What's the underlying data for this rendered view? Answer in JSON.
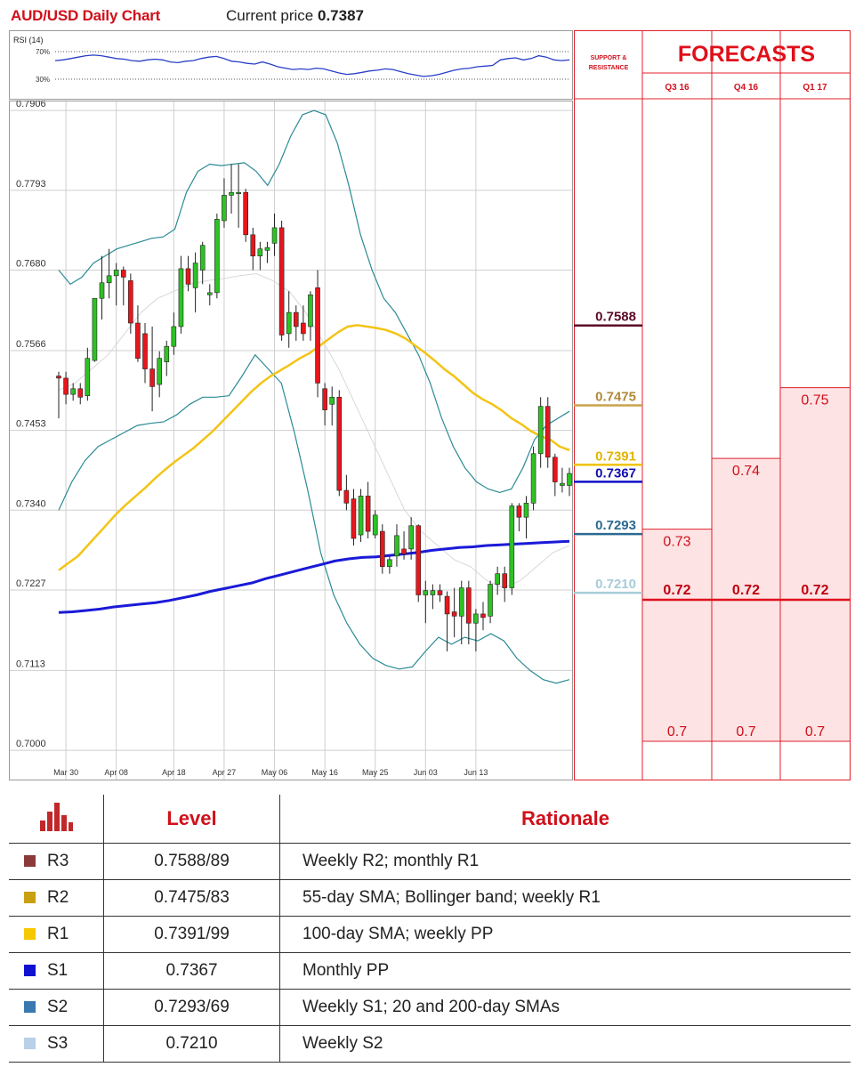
{
  "header": {
    "title": "AUD/USD Daily Chart",
    "price_label": "Current price",
    "price_value": "0.7387"
  },
  "rsi": {
    "label": "RSI (14)",
    "levels": [
      "70%",
      "30%"
    ],
    "values": [
      57,
      58,
      60,
      62,
      64,
      65,
      64,
      62,
      60,
      59,
      57,
      56,
      58,
      59,
      58,
      55,
      54,
      56,
      57,
      60,
      62,
      63,
      60,
      56,
      55,
      53,
      52,
      55,
      52,
      48,
      46,
      44,
      45,
      44,
      46,
      45,
      42,
      39,
      37,
      38,
      40,
      42,
      43,
      45,
      44,
      41,
      38,
      36,
      34,
      35,
      37,
      40,
      43,
      45,
      46,
      48,
      49,
      50,
      58,
      60,
      61,
      58,
      60,
      64,
      62,
      58,
      57,
      58
    ]
  },
  "chart_data": {
    "type": "candlestick",
    "title": "AUD/USD Daily Chart",
    "y_ticks": [
      "0.7906",
      "0.7793",
      "0.7680",
      "0.7566",
      "0.7453",
      "0.7340",
      "0.7227",
      "0.7113",
      "0.7000"
    ],
    "ylim": [
      0.699,
      0.791
    ],
    "x_ticks": [
      {
        "label": "Mar 30",
        "i": 1
      },
      {
        "label": "Apr 08",
        "i": 8
      },
      {
        "label": "Apr 18",
        "i": 16
      },
      {
        "label": "Apr 27",
        "i": 23
      },
      {
        "label": "May 06",
        "i": 30
      },
      {
        "label": "May 16",
        "i": 37
      },
      {
        "label": "May 25",
        "i": 44
      },
      {
        "label": "Jun 03",
        "i": 51
      },
      {
        "label": "Jun 13",
        "i": 58
      }
    ],
    "candles": [
      [
        0.753,
        0.7536,
        0.747,
        0.7527
      ],
      [
        0.7527,
        0.7536,
        0.749,
        0.7504
      ],
      [
        0.7504,
        0.752,
        0.7495,
        0.7512
      ],
      [
        0.7512,
        0.752,
        0.749,
        0.75
      ],
      [
        0.7502,
        0.757,
        0.7495,
        0.7555
      ],
      [
        0.7552,
        0.764,
        0.755,
        0.764
      ],
      [
        0.764,
        0.77,
        0.761,
        0.7662
      ],
      [
        0.7662,
        0.771,
        0.764,
        0.7672
      ],
      [
        0.7672,
        0.769,
        0.763,
        0.768
      ],
      [
        0.768,
        0.7685,
        0.763,
        0.767
      ],
      [
        0.7665,
        0.7675,
        0.759,
        0.7605
      ],
      [
        0.7605,
        0.763,
        0.755,
        0.7555
      ],
      [
        0.759,
        0.7605,
        0.752,
        0.754
      ],
      [
        0.754,
        0.76,
        0.748,
        0.7515
      ],
      [
        0.7518,
        0.7565,
        0.75,
        0.7555
      ],
      [
        0.755,
        0.758,
        0.753,
        0.7572
      ],
      [
        0.7572,
        0.762,
        0.756,
        0.76
      ],
      [
        0.76,
        0.77,
        0.759,
        0.7682
      ],
      [
        0.7682,
        0.77,
        0.765,
        0.766
      ],
      [
        0.7655,
        0.7705,
        0.762,
        0.769
      ],
      [
        0.768,
        0.772,
        0.766,
        0.7715
      ],
      [
        0.7645,
        0.766,
        0.763,
        0.7648
      ],
      [
        0.7648,
        0.776,
        0.764,
        0.7752
      ],
      [
        0.775,
        0.781,
        0.774,
        0.7786
      ],
      [
        0.7786,
        0.783,
        0.776,
        0.779
      ],
      [
        0.779,
        0.783,
        0.774,
        0.779
      ],
      [
        0.779,
        0.7795,
        0.772,
        0.773
      ],
      [
        0.773,
        0.774,
        0.768,
        0.77
      ],
      [
        0.77,
        0.772,
        0.768,
        0.771
      ],
      [
        0.7708,
        0.772,
        0.769,
        0.7712
      ],
      [
        0.7718,
        0.776,
        0.77,
        0.774
      ],
      [
        0.774,
        0.775,
        0.758,
        0.7588
      ],
      [
        0.759,
        0.765,
        0.757,
        0.762
      ],
      [
        0.762,
        0.763,
        0.758,
        0.76
      ],
      [
        0.7605,
        0.763,
        0.758,
        0.759
      ],
      [
        0.76,
        0.765,
        0.758,
        0.7645
      ],
      [
        0.7655,
        0.768,
        0.75,
        0.752
      ],
      [
        0.7512,
        0.752,
        0.746,
        0.7482
      ],
      [
        0.749,
        0.7515,
        0.746,
        0.75
      ],
      [
        0.75,
        0.751,
        0.736,
        0.7368
      ],
      [
        0.7368,
        0.739,
        0.734,
        0.735
      ],
      [
        0.7356,
        0.737,
        0.729,
        0.73
      ],
      [
        0.7305,
        0.737,
        0.7295,
        0.736
      ],
      [
        0.736,
        0.738,
        0.73,
        0.731
      ],
      [
        0.7305,
        0.734,
        0.73,
        0.7333
      ],
      [
        0.731,
        0.732,
        0.725,
        0.726
      ],
      [
        0.726,
        0.7275,
        0.725,
        0.727
      ],
      [
        0.7275,
        0.732,
        0.726,
        0.7304
      ],
      [
        0.7285,
        0.731,
        0.727,
        0.7278
      ],
      [
        0.7285,
        0.733,
        0.727,
        0.7318
      ],
      [
        0.7318,
        0.732,
        0.721,
        0.722
      ],
      [
        0.722,
        0.724,
        0.718,
        0.7226
      ],
      [
        0.722,
        0.7235,
        0.72,
        0.7226
      ],
      [
        0.7226,
        0.7235,
        0.721,
        0.722
      ],
      [
        0.7218,
        0.7225,
        0.714,
        0.7193
      ],
      [
        0.7196,
        0.723,
        0.716,
        0.719
      ],
      [
        0.719,
        0.724,
        0.715,
        0.723
      ],
      [
        0.723,
        0.724,
        0.715,
        0.718
      ],
      [
        0.718,
        0.72,
        0.714,
        0.7193
      ],
      [
        0.7193,
        0.721,
        0.717,
        0.7188
      ],
      [
        0.719,
        0.724,
        0.718,
        0.7235
      ],
      [
        0.7235,
        0.726,
        0.722,
        0.725
      ],
      [
        0.725,
        0.726,
        0.721,
        0.723
      ],
      [
        0.723,
        0.735,
        0.722,
        0.7346
      ],
      [
        0.7346,
        0.735,
        0.731,
        0.733
      ],
      [
        0.733,
        0.736,
        0.73,
        0.735
      ],
      [
        0.735,
        0.743,
        0.734,
        0.742
      ],
      [
        0.742,
        0.75,
        0.74,
        0.7487
      ],
      [
        0.7487,
        0.75,
        0.74,
        0.7415
      ],
      [
        0.7415,
        0.742,
        0.736,
        0.738
      ],
      [
        0.7375,
        0.74,
        0.7365,
        0.7378
      ],
      [
        0.7375,
        0.74,
        0.736,
        0.7392
      ]
    ],
    "ma_yellow": [
      0.7255,
      0.7265,
      0.7275,
      0.729,
      0.7305,
      0.732,
      0.7335,
      0.7348,
      0.736,
      0.7372,
      0.7385,
      0.7397,
      0.7408,
      0.7418,
      0.7428,
      0.744,
      0.7452,
      0.7466,
      0.748,
      0.7494,
      0.7508,
      0.752,
      0.753,
      0.7538,
      0.7546,
      0.7555,
      0.7562,
      0.7572,
      0.7582,
      0.7592,
      0.76,
      0.7602,
      0.76,
      0.7598,
      0.7595,
      0.759,
      0.7583,
      0.7573,
      0.7563,
      0.7552,
      0.754,
      0.753,
      0.7518,
      0.7506,
      0.7497,
      0.749,
      0.7481,
      0.747,
      0.7462,
      0.7452,
      0.7445,
      0.744,
      0.743,
      0.7425
    ],
    "ma_blue": [
      0.7195,
      0.7196,
      0.7198,
      0.72,
      0.7203,
      0.7205,
      0.7207,
      0.7209,
      0.7212,
      0.7216,
      0.722,
      0.7225,
      0.7229,
      0.7233,
      0.7237,
      0.7243,
      0.7248,
      0.7253,
      0.7258,
      0.7263,
      0.7268,
      0.7271,
      0.7273,
      0.7274,
      0.7276,
      0.7278,
      0.728,
      0.7283,
      0.7285,
      0.7287,
      0.7288,
      0.729,
      0.7291,
      0.7292,
      0.7293,
      0.7294,
      0.7295,
      0.7296
    ],
    "bb_upper": [
      0.768,
      0.766,
      0.767,
      0.769,
      0.77,
      0.771,
      0.7715,
      0.772,
      0.7725,
      0.7727,
      0.7738,
      0.779,
      0.782,
      0.783,
      0.7828,
      0.783,
      0.7832,
      0.782,
      0.78,
      0.783,
      0.787,
      0.79,
      0.7906,
      0.79,
      0.786,
      0.78,
      0.773,
      0.768,
      0.764,
      0.762,
      0.759,
      0.756,
      0.752,
      0.747,
      0.743,
      0.74,
      0.738,
      0.737,
      0.7365,
      0.737,
      0.74,
      0.744,
      0.746,
      0.747,
      0.748
    ],
    "bb_lower": [
      0.734,
      0.738,
      0.741,
      0.743,
      0.744,
      0.745,
      0.746,
      0.7463,
      0.7465,
      0.7475,
      0.749,
      0.75,
      0.75,
      0.7502,
      0.753,
      0.756,
      0.754,
      0.752,
      0.745,
      0.737,
      0.728,
      0.722,
      0.718,
      0.715,
      0.713,
      0.712,
      0.7115,
      0.7118,
      0.714,
      0.716,
      0.715,
      0.716,
      0.7155,
      0.7165,
      0.7155,
      0.713,
      0.7113,
      0.71,
      0.7095,
      0.71
    ],
    "bb_mid": [
      0.751,
      0.752,
      0.754,
      0.756,
      0.759,
      0.762,
      0.764,
      0.765,
      0.766,
      0.7665,
      0.7668,
      0.7672,
      0.7675,
      0.7665,
      0.765,
      0.762,
      0.758,
      0.754,
      0.749,
      0.744,
      0.739,
      0.734,
      0.731,
      0.729,
      0.727,
      0.726,
      0.724,
      0.723,
      0.724,
      0.726,
      0.728,
      0.729
    ]
  },
  "sr": {
    "title_line1": "SUPPORT &",
    "title_line2": "RESISTANCE",
    "levels": [
      {
        "value": "0.7588",
        "color": "#5c0a26",
        "text_color": "#5c0a26",
        "y": 0.7588
      },
      {
        "value": "0.7475",
        "color": "#c9a24f",
        "text_color": "#b0893a",
        "y": 0.7475
      },
      {
        "value": "0.7391",
        "color": "#f0c400",
        "text_color": "#e0b400",
        "y": 0.7391
      },
      {
        "value": "0.7367",
        "color": "#1010c8",
        "text_color": "#1010b0",
        "y": 0.7367
      },
      {
        "value": "0.7293",
        "color": "#2b6a90",
        "text_color": "#2b6a90",
        "y": 0.7293
      },
      {
        "value": "0.7210",
        "color": "#a8ccd8",
        "text_color": "#a8ccd8",
        "y": 0.721
      }
    ]
  },
  "forecasts": {
    "title": "FORECASTS",
    "columns": [
      {
        "label": "Q3 16",
        "top": 0.73,
        "mid": 0.72,
        "low": 0.7,
        "top_text": "0.73",
        "mid_text": "0.72",
        "low_text": "0.7"
      },
      {
        "label": "Q4 16",
        "top": 0.74,
        "mid": 0.72,
        "low": 0.7,
        "top_text": "0.74",
        "mid_text": "0.72",
        "low_text": "0.7"
      },
      {
        "label": "Q1 17",
        "top": 0.75,
        "mid": 0.72,
        "low": 0.7,
        "top_text": "0.75",
        "mid_text": "0.72",
        "low_text": "0.7"
      }
    ]
  },
  "table": {
    "headers": {
      "level": "Level",
      "rationale": "Rationale"
    },
    "rows": [
      {
        "name": "R3",
        "color": "#8b3a3a",
        "level": "0.7588/89",
        "rationale": "Weekly R2; monthly R1"
      },
      {
        "name": "R2",
        "color": "#c9a010",
        "level": "0.7475/83",
        "rationale": "55-day SMA; Bollinger band; weekly R1"
      },
      {
        "name": "R1",
        "color": "#f5c800",
        "level": "0.7391/99",
        "rationale": "100-day SMA; weekly PP"
      },
      {
        "name": "S1",
        "color": "#1010d0",
        "level": "0.7367",
        "rationale": "Monthly PP"
      },
      {
        "name": "S2",
        "color": "#3a78b0",
        "level": "0.7293/69",
        "rationale": "Weekly S1; 20 and 200-day SMAs"
      },
      {
        "name": "S3",
        "color": "#b8d0e8",
        "level": "0.7210",
        "rationale": "Weekly S2"
      }
    ]
  }
}
